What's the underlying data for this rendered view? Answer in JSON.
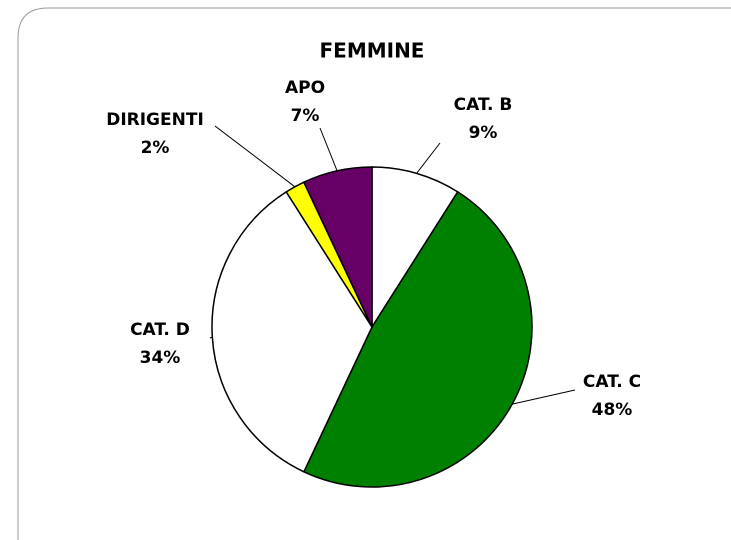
{
  "chart_data": {
    "type": "pie",
    "title": "FEMMINE",
    "categories": [
      "CAT. B",
      "CAT. C",
      "CAT. D",
      "DIRIGENTI",
      "APO"
    ],
    "values": [
      9,
      48,
      34,
      2,
      7
    ],
    "value_labels": [
      "9%",
      "48%",
      "34%",
      "2%",
      "7%"
    ],
    "colors": [
      "#ffffff",
      "#008000",
      "#ffffff",
      "#ffff00",
      "#660066"
    ]
  }
}
